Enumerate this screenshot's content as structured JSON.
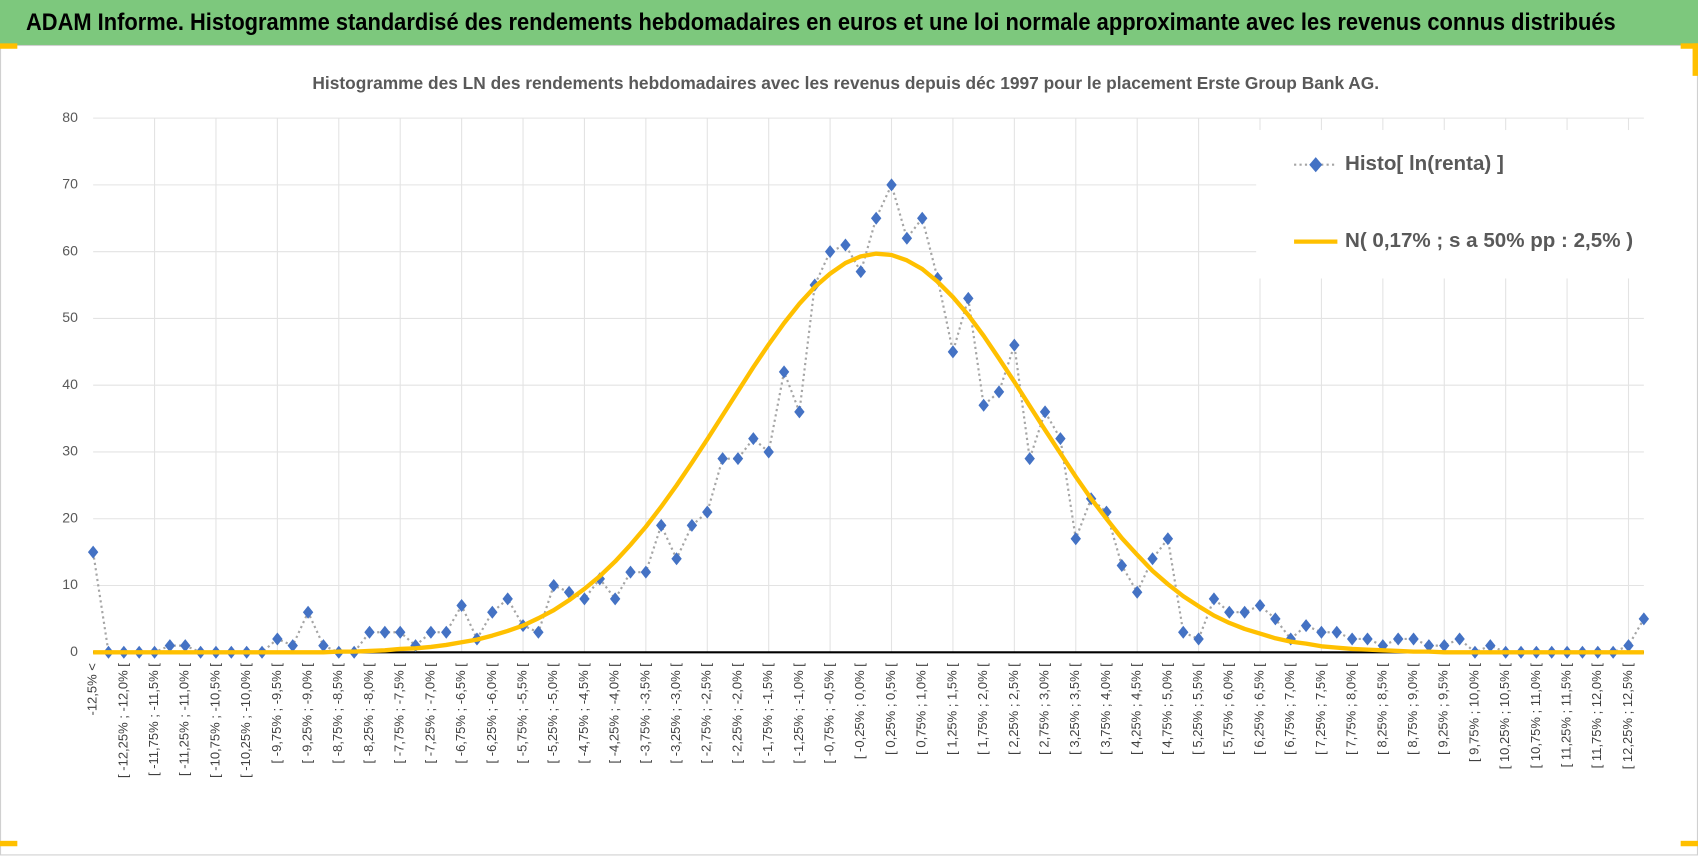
{
  "header": {
    "title": "ADAM Informe. Histogramme standardisé des rendements hebdomadaires en euros et une loi normale approximante avec les revenus connus distribués"
  },
  "chart_data": {
    "type": "line",
    "title": "Histogramme des LN des rendements hebdomadaires avec les revenus depuis déc 1997 pour le placement Erste Group Bank AG.",
    "categories": [
      "-12,5% <",
      null,
      "[ -12,25% ; -12,0% [",
      null,
      "[ -11,75% ; -11,5% [",
      null,
      "[ -11,25% ; -11,0% [",
      null,
      "[ -10,75% ; -10,5% [",
      null,
      "[ -10,25% ; -10,0% [",
      null,
      "[ -9,75% ; -9,5% [",
      null,
      "[ -9,25% ; -9,0% [",
      null,
      "[ -8,75% ; -8,5% [",
      null,
      "[ -8,25% ; -8,0% [",
      null,
      "[ -7,75% ; -7,5% [",
      null,
      "[ -7,25% ; -7,0% [",
      null,
      "[ -6,75% ; -6,5% [",
      null,
      "[ -6,25% ; -6,0% [",
      null,
      "[ -5,75% ; -5,5% [",
      null,
      "[ -5,25% ; -5,0% [",
      null,
      "[ -4,75% ; -4,5% [",
      null,
      "[ -4,25% ; -4,0% [",
      null,
      "[ -3,75% ; -3,5% [",
      null,
      "[ -3,25% ; -3,0% [",
      null,
      "[ -2,75% ; -2,5% [",
      null,
      "[ -2,25% ; -2,0% [",
      null,
      "[ -1,75% ; -1,5% [",
      null,
      "[ -1,25% ; -1,0% [",
      null,
      "[ -0,75% ; -0,5% [",
      null,
      "[ -0,25% ; 0,0% [",
      null,
      "[ 0,25% ; 0,5% [",
      null,
      "[ 0,75% ; 1,0% [",
      null,
      "[ 1,25% ; 1,5% [",
      null,
      "[ 1,75% ; 2,0% [",
      null,
      "[ 2,25% ; 2,5% [",
      null,
      "[ 2,75% ; 3,0% [",
      null,
      "[ 3,25% ; 3,5% [",
      null,
      "[ 3,75% ; 4,0% [",
      null,
      "[ 4,25% ; 4,5% [",
      null,
      "[ 4,75% ; 5,0% [",
      null,
      "[ 5,25% ; 5,5% [",
      null,
      "[ 5,75% ; 6,0% [",
      null,
      "[ 6,25% ; 6,5% [",
      null,
      "[ 6,75% ; 7,0% [",
      null,
      "[ 7,25% ; 7,5% [",
      null,
      "[ 7,75% ; 8,0% [",
      null,
      "[ 8,25% ; 8,5% [",
      null,
      "[ 8,75% ; 9,0% [",
      null,
      "[ 9,25% ; 9,5% [",
      null,
      "[ 9,75% ; 10,0% [",
      null,
      "[ 10,25% ; 10,5% [",
      null,
      "[ 10,75% ; 11,0% [",
      null,
      "[ 11,25% ; 11,5% [",
      null,
      "[ 11,75% ; 12,0% [",
      null,
      "[ 12,25% ; 12,5% [",
      null
    ],
    "series": [
      {
        "name": "Histo[ ln(renta) ]",
        "color": "#4472c4",
        "line_color": "#a5a5a5",
        "marker": "diamond",
        "values": [
          15,
          0,
          0,
          0,
          0,
          1,
          1,
          0,
          0,
          0,
          0,
          0,
          2,
          1,
          6,
          1,
          0,
          0,
          3,
          3,
          3,
          1,
          3,
          3,
          7,
          2,
          6,
          8,
          4,
          3,
          10,
          9,
          8,
          11,
          8,
          12,
          12,
          19,
          14,
          19,
          21,
          29,
          29,
          32,
          30,
          42,
          36,
          55,
          60,
          61,
          57,
          65,
          70,
          62,
          65,
          56,
          45,
          53,
          37,
          39,
          46,
          29,
          36,
          32,
          17,
          23,
          21,
          13,
          9,
          14,
          17,
          3,
          2,
          8,
          6,
          6,
          7,
          5,
          2,
          4,
          3,
          3,
          2,
          2,
          1,
          2,
          2,
          1,
          1,
          2,
          0,
          1,
          0,
          0,
          0,
          0,
          0,
          0,
          0,
          0,
          1,
          5
        ]
      },
      {
        "name": "N( 0,17% ; s a 50% pp : 2,5% )",
        "color": "#ffc000",
        "values": [
          0,
          0,
          0,
          0,
          0,
          0,
          0,
          0,
          0,
          0,
          0,
          0,
          0,
          0,
          0,
          0,
          0.1,
          0.1,
          0.2,
          0.3,
          0.5,
          0.6,
          0.8,
          1.1,
          1.5,
          1.9,
          2.5,
          3.2,
          4.0,
          5.1,
          6.3,
          7.8,
          9.5,
          11.4,
          13.6,
          16.1,
          18.8,
          21.8,
          25.0,
          28.4,
          31.9,
          35.5,
          39.1,
          42.7,
          46.1,
          49.3,
          52.2,
          54.7,
          56.7,
          58.3,
          59.3,
          59.7,
          59.5,
          58.7,
          57.4,
          55.5,
          53.2,
          50.5,
          47.4,
          44.0,
          40.5,
          36.9,
          33.3,
          29.8,
          26.3,
          23.0,
          20.0,
          17.1,
          14.6,
          12.2,
          10.2,
          8.4,
          6.9,
          5.5,
          4.4,
          3.5,
          2.8,
          2.1,
          1.6,
          1.3,
          0.9,
          0.7,
          0.5,
          0.4,
          0.3,
          0.2,
          0.1,
          0.1,
          0,
          0,
          0,
          0,
          0,
          0,
          0,
          0,
          0,
          0,
          0,
          0,
          0,
          0
        ]
      }
    ],
    "ylim": [
      0,
      80
    ],
    "yticks": [
      0,
      10,
      20,
      30,
      40,
      50,
      60,
      70,
      80
    ],
    "grid": true,
    "legend": "top-right"
  }
}
